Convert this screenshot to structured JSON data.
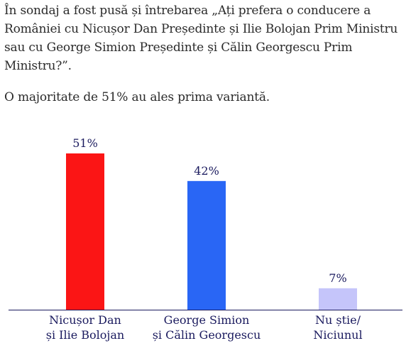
{
  "article": {
    "question": "În sondaj a fost pusă și întrebarea „Ați prefera o conducere a României cu Nicușor Dan Președinte și Ilie Bolojan Prim Ministru sau cu George Simion Președinte și Călin Georgescu Prim Ministru?”.",
    "summary": "O majoritate de 51% au ales prima variantă."
  },
  "chart_data": {
    "type": "bar",
    "title": "",
    "xlabel": "",
    "ylabel": "",
    "ylim": [
      0,
      51
    ],
    "grid": false,
    "legend": "none",
    "categories": [
      [
        "Nicușor Dan",
        "și Ilie Bolojan"
      ],
      [
        "George Simion",
        "și Călin Georgescu"
      ],
      [
        "Nu știe/",
        "Niciunul"
      ]
    ],
    "values": [
      51,
      42,
      7
    ],
    "data_labels": [
      "51%",
      "42%",
      "7%"
    ],
    "colors": [
      "#fb1515",
      "#2966f5",
      "#c5c5fa"
    ],
    "label_color": "#1a1a5e",
    "axis_color": "#1a1a5e"
  }
}
